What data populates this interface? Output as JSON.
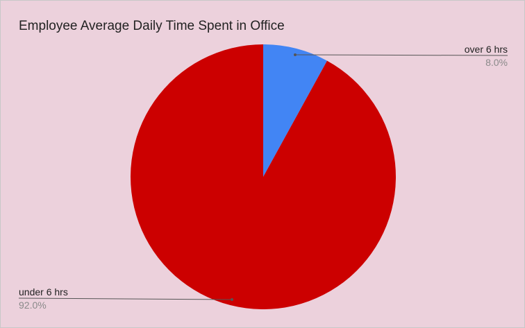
{
  "chart_data": {
    "type": "pie",
    "title": "Employee Average Daily Time Spent in Office",
    "slices": [
      {
        "label": "over 6 hrs",
        "value": 8.0,
        "display": "8.0%",
        "color": "#4285f4",
        "label_side": "right"
      },
      {
        "label": "under 6 hrs",
        "value": 92.0,
        "display": "92.0%",
        "color": "#cc0000",
        "label_side": "left"
      }
    ],
    "start_angle_deg": 0,
    "direction": "clockwise",
    "background_color": "#ecd1dc",
    "legend": "none",
    "leader_line_color": "#555555"
  }
}
